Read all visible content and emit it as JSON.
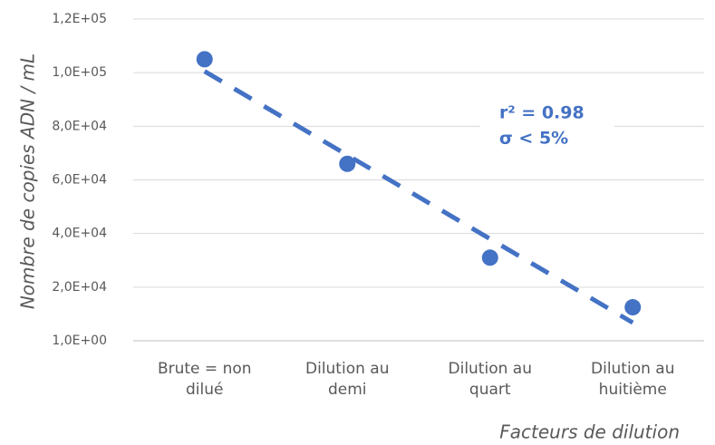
{
  "chart_data": {
    "type": "scatter",
    "categories": [
      "Brute = non dilué",
      "Dilution au demi",
      "Dilution au quart",
      "Dilution au huitième"
    ],
    "values": [
      105000,
      66000,
      31000,
      12500
    ],
    "color": "#4472c4",
    "trendline": "linear",
    "y_label": "Nombre de copies ADN / mL",
    "x_label": "Facteurs de dilution",
    "annotations": [
      "r² = 0.98",
      "σ < 5%"
    ],
    "ylim": [
      0,
      120000
    ],
    "yticks": [
      {
        "value": 1,
        "label": "1,0E+00"
      },
      {
        "value": 20000,
        "label": "2,0E+04"
      },
      {
        "value": 40000,
        "label": "4,0E+04"
      },
      {
        "value": 60000,
        "label": "6,0E+04"
      },
      {
        "value": 80000,
        "label": "8,0E+04"
      },
      {
        "value": 100000,
        "label": "1,0E+05"
      },
      {
        "value": 120000,
        "label": "1,2E+05"
      }
    ],
    "grid": true
  }
}
